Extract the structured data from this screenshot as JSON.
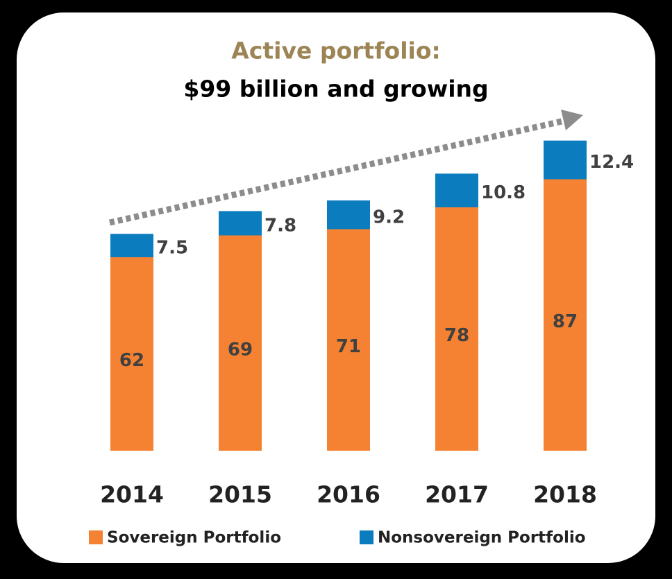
{
  "chart_data": {
    "type": "bar",
    "stacked": true,
    "title": "Active portfolio:",
    "subtitle": "$99 billion and growing",
    "categories": [
      "2014",
      "2015",
      "2016",
      "2017",
      "2018"
    ],
    "series": [
      {
        "name": "Sovereign Portfolio",
        "color": "#f58232",
        "values": [
          62,
          69,
          71,
          78,
          87
        ]
      },
      {
        "name": "Nonsovereign Portfolio",
        "color": "#0b7dbf",
        "values": [
          7.5,
          7.8,
          9.2,
          10.8,
          12.4
        ]
      }
    ]
  }
}
